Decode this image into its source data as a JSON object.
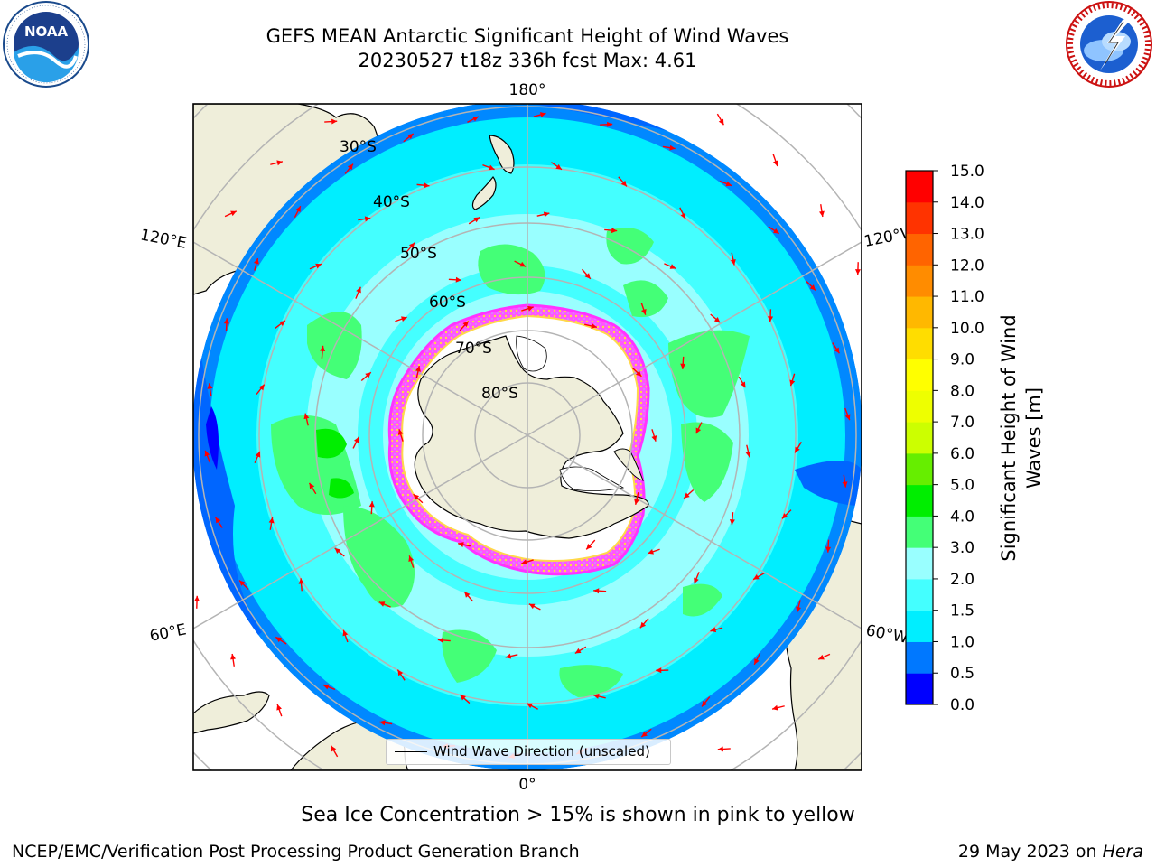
{
  "title": {
    "line1": "GEFS MEAN Antarctic Significant Height of Wind Waves",
    "line2": "20230527 t18z 336h fcst   Max: 4.61"
  },
  "logos": {
    "left": {
      "name": "noaa-logo",
      "text": "NOAA",
      "ring_text": "NATIONAL OCEANIC AND ATMOSPHERIC ADMINISTRATION · U.S. DEPARTMENT OF COMMERCE"
    },
    "right": {
      "name": "nws-logo",
      "ring_text": "NATIONAL WEATHER SERVICE"
    }
  },
  "map": {
    "projection": "south-polar-stereographic",
    "lon_labels": {
      "top": "180°",
      "bottom": "0°",
      "upper_left": "120°E",
      "upper_right": "120°W",
      "lower_left": "60°E",
      "lower_right": "60°W"
    },
    "lat_labels": [
      "30°S",
      "40°S",
      "50°S",
      "60°S",
      "70°S",
      "80°S"
    ],
    "colors": {
      "land": "#efeeda",
      "ice_shelf": "#ffffff",
      "sea_ice_edge": [
        "#ff44ff",
        "#ffd84a"
      ],
      "arrows": "#ff0000",
      "grid": "#b4b4b4"
    }
  },
  "legend": {
    "label": "Wind Wave Direction (unscaled)"
  },
  "colorbar": {
    "label_line1": "Significant Height of Wind",
    "label_line2": "Waves [m]",
    "ticks": [
      "0.0",
      "0.5",
      "1.0",
      "1.5",
      "2.0",
      "3.0",
      "4.0",
      "5.0",
      "6.0",
      "7.0",
      "8.0",
      "9.0",
      "10.0",
      "11.0",
      "12.0",
      "13.0",
      "14.0",
      "15.0"
    ],
    "colors": [
      "#0000ff",
      "#0078ff",
      "#00eeff",
      "#44ffff",
      "#99ffff",
      "#44ff77",
      "#00ee00",
      "#66ee00",
      "#ccff00",
      "#eeff00",
      "#ffff00",
      "#ffdd00",
      "#ffb800",
      "#ff8c00",
      "#ff6400",
      "#ff3300",
      "#ff0000"
    ]
  },
  "note": "Sea Ice Concentration > 15% is shown in pink to yellow",
  "footer": {
    "left": "NCEP/EMC/Verification Post Processing Product Generation Branch",
    "right_prefix": "29 May 2023 on ",
    "right_host": "Hera"
  }
}
